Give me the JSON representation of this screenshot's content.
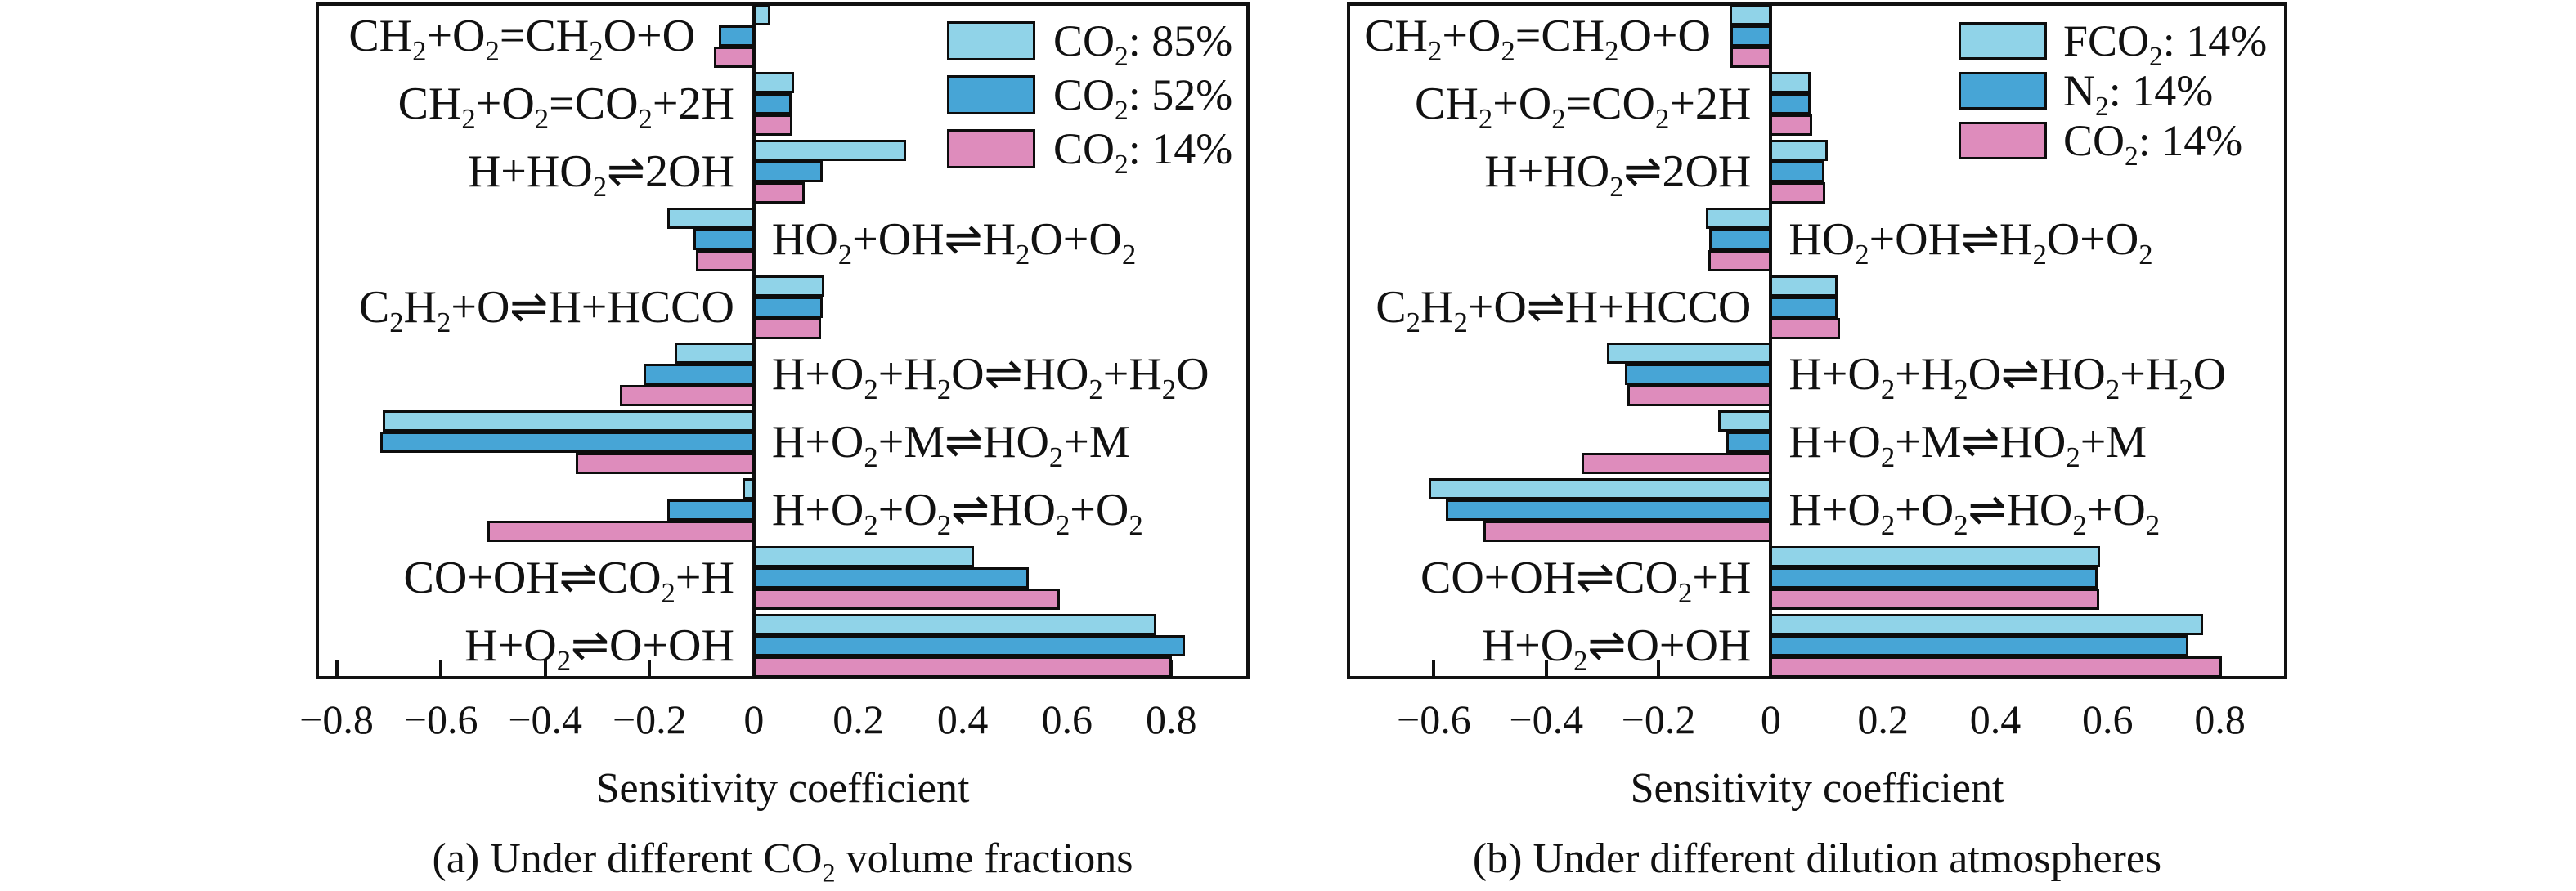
{
  "figure": {
    "background": "#ffffff"
  },
  "colors": {
    "series": [
      "#90D3E8",
      "#47A5D6",
      "#DE8CBC"
    ],
    "bar_border": "#0d0d0d",
    "axis": "#111111",
    "text": "#111111"
  },
  "chart_data": [
    {
      "id": "a",
      "type": "bar",
      "orientation": "horizontal",
      "xlabel": "Sensitivity coefficient",
      "caption": "(a) Under different CO_2 volume fractions",
      "xlim": [
        -0.84,
        0.95
      ],
      "grid": false,
      "legend_position": "upper-right-inside",
      "xticks": [
        {
          "v": -0.8,
          "label": "−0.8"
        },
        {
          "v": -0.6,
          "label": "−0.6"
        },
        {
          "v": -0.4,
          "label": "−0.4"
        },
        {
          "v": -0.2,
          "label": "−0.2"
        },
        {
          "v": 0,
          "label": "0"
        },
        {
          "v": 0.2,
          "label": "0.2"
        },
        {
          "v": 0.4,
          "label": "0.4"
        },
        {
          "v": 0.6,
          "label": "0.6"
        },
        {
          "v": 0.8,
          "label": "0.8"
        }
      ],
      "legend": [
        "CO_2: 85%",
        "CO_2: 52%",
        "CO_2: 14%"
      ],
      "categories": [
        "CH_2+O_2=CH_2O+O",
        "CH_2+O_2=CO_2+2H",
        "H+HO_2⇌2OH",
        "HO_2+OH⇌H_2O+O_2",
        "C_2H_2+O⇌H+HCCO",
        "H+O_2+H_2O⇌HO_2+H_2O",
        "H+O_2+M⇌HO_2+M",
        "H+O_2+O_2⇌HO_2+O_2",
        "CO+OH⇌CO_2+H",
        "H+O_2⇌O+OH"
      ],
      "label_side": [
        "left",
        "left",
        "left",
        "right",
        "left",
        "right",
        "right",
        "right",
        "left",
        "left"
      ],
      "series": [
        {
          "name": "CO_2: 85%",
          "values": [
            0.03,
            0.075,
            0.29,
            -0.165,
            0.133,
            -0.15,
            -0.71,
            -0.02,
            0.42,
            0.77
          ]
        },
        {
          "name": "CO_2: 52%",
          "values": [
            -0.065,
            0.07,
            0.13,
            -0.115,
            0.131,
            -0.21,
            -0.715,
            -0.165,
            0.525,
            0.825
          ]
        },
        {
          "name": "CO_2: 14%",
          "values": [
            -0.075,
            0.073,
            0.095,
            -0.11,
            0.127,
            -0.255,
            -0.34,
            -0.51,
            0.585,
            0.8
          ]
        }
      ]
    },
    {
      "id": "b",
      "type": "bar",
      "orientation": "horizontal",
      "xlabel": "Sensitivity coefficient",
      "caption": "(b) Under different dilution atmospheres",
      "xlim": [
        -0.755,
        0.92
      ],
      "grid": false,
      "legend_position": "upper-right-inside",
      "xticks": [
        {
          "v": -0.6,
          "label": "−0.6"
        },
        {
          "v": -0.4,
          "label": "−0.4"
        },
        {
          "v": -0.2,
          "label": "−0.2"
        },
        {
          "v": 0,
          "label": "0"
        },
        {
          "v": 0.2,
          "label": "0.2"
        },
        {
          "v": 0.4,
          "label": "0.4"
        },
        {
          "v": 0.6,
          "label": "0.6"
        },
        {
          "v": 0.8,
          "label": "0.8"
        }
      ],
      "legend": [
        "FCO_2: 14%",
        "N_2: 14%",
        "CO_2: 14%"
      ],
      "categories": [
        "CH_2+O_2=CH_2O+O",
        "CH_2+O_2=CO_2+2H",
        "H+HO_2⇌2OH",
        "HO_2+OH⇌H_2O+O_2",
        "C_2H_2+O⇌H+HCCO",
        "H+O_2+H_2O⇌HO_2+H_2O",
        "H+O_2+M⇌HO_2+M",
        "H+O_2+O_2⇌HO_2+O_2",
        "CO+OH⇌CO_2+H",
        "H+O_2⇌O+OH"
      ],
      "label_side": [
        "left",
        "left",
        "left",
        "right",
        "left",
        "right",
        "right",
        "right",
        "left",
        "left"
      ],
      "series": [
        {
          "name": "FCO_2: 14%",
          "values": [
            -0.072,
            0.07,
            0.1,
            -0.114,
            0.118,
            -0.29,
            -0.092,
            -0.608,
            0.585,
            0.768
          ]
        },
        {
          "name": "N_2: 14%",
          "values": [
            -0.07,
            0.07,
            0.094,
            -0.109,
            0.117,
            -0.258,
            -0.077,
            -0.578,
            0.58,
            0.742
          ]
        },
        {
          "name": "CO_2: 14%",
          "values": [
            -0.071,
            0.073,
            0.095,
            -0.11,
            0.122,
            -0.254,
            -0.335,
            -0.51,
            0.583,
            0.802
          ]
        }
      ]
    }
  ]
}
